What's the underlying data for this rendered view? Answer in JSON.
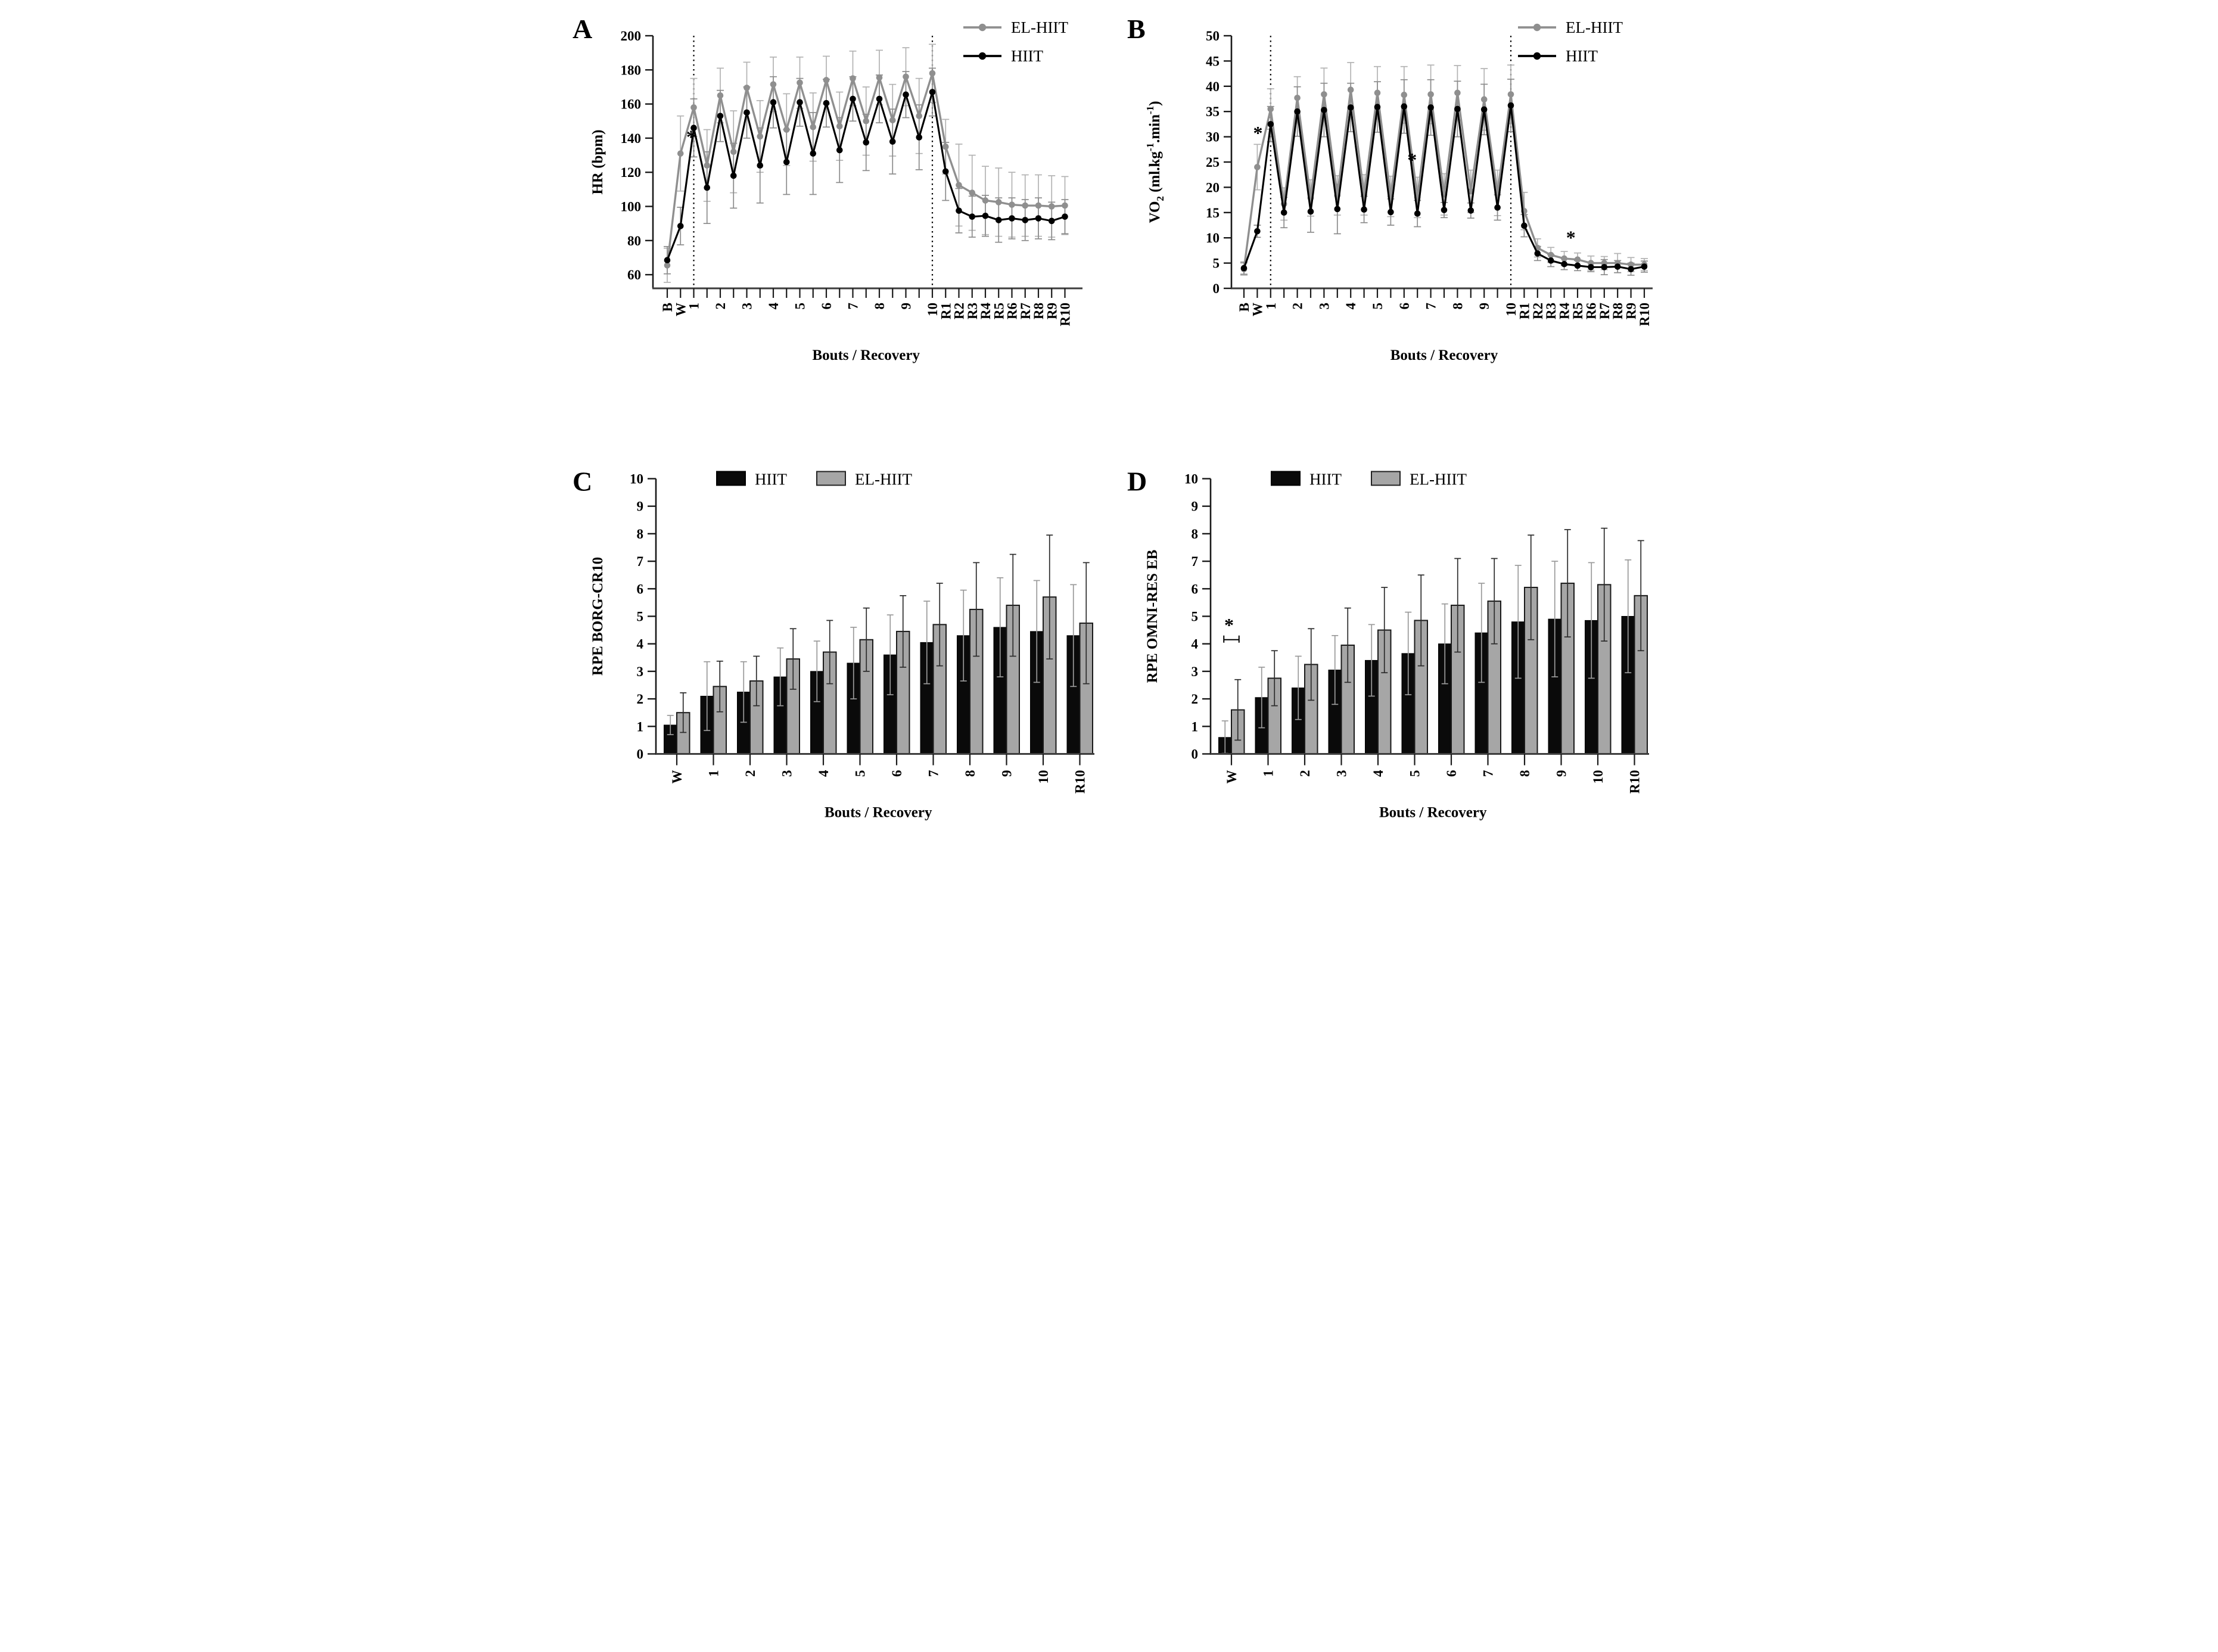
{
  "figure": {
    "xlabel": "Bouts / Recovery",
    "legend_line_panels": [
      "EL-HIIT",
      "HIIT"
    ],
    "legend_bar_panels": [
      "HIIT",
      "EL-HIIT"
    ],
    "colors": {
      "el_hiit_line": "#8f8f8f",
      "hiit_line": "#000000",
      "el_hiit_bar": "#a6a6a6",
      "hiit_bar": "#0a0a0a",
      "axis": "#3d3d3d"
    }
  },
  "chart_data": [
    {
      "letter": "A",
      "type": "line",
      "ylabel": "HR (bpm)",
      "xlabel": "Bouts / Recovery",
      "ylim": [
        52,
        200
      ],
      "yticks": [
        60,
        80,
        100,
        120,
        140,
        160,
        180,
        200
      ],
      "x_labels": [
        "B",
        "W",
        "1",
        "",
        "2",
        "",
        "3",
        "",
        "4",
        "",
        "5",
        "",
        "6",
        "",
        "7",
        "",
        "8",
        "",
        "9",
        "",
        "10",
        "R1",
        "R2",
        "R3",
        "R4",
        "R5",
        "R6",
        "R7",
        "R8",
        "R9",
        "R10"
      ],
      "dotted_x": [
        2,
        20
      ],
      "legend_pos": "top-right",
      "series": [
        {
          "name": "EL-HIIT",
          "color": "#8f8f8f",
          "err_color": "#b3b3b3",
          "values": [
            65.5,
            131,
            158,
            124,
            165,
            132,
            169.5,
            141,
            171.5,
            145,
            172.5,
            146.5,
            174,
            147,
            175,
            150,
            175.5,
            150.5,
            176,
            153,
            178,
            135,
            112.5,
            108,
            103.5,
            102.5,
            101,
            100.5,
            100.5,
            100,
            100.5
          ],
          "err": [
            10,
            22,
            17,
            21,
            16,
            24,
            15,
            21,
            16,
            21,
            15,
            20,
            14,
            20,
            16,
            20,
            16,
            21,
            17,
            22,
            17,
            16,
            24,
            22,
            20,
            20,
            19,
            18,
            18,
            18,
            17
          ]
        },
        {
          "name": "HIIT",
          "color": "#000000",
          "err_color": "#8c8c8c",
          "values": [
            68.5,
            88.5,
            146,
            111,
            153,
            118,
            155,
            124,
            161,
            126,
            161,
            131,
            160.5,
            133,
            163,
            137.5,
            163,
            138,
            165.5,
            140.5,
            167,
            120.5,
            97.5,
            94,
            94.5,
            92,
            93,
            92,
            93,
            91.5,
            94
          ],
          "err": [
            8,
            11,
            17,
            21,
            15,
            19,
            15,
            22,
            15,
            19,
            14,
            24,
            14,
            19,
            13,
            16.5,
            14,
            19,
            13.5,
            19,
            14,
            17,
            13,
            12,
            12,
            13,
            12,
            12,
            12,
            11,
            10
          ]
        }
      ],
      "annotations": [
        {
          "text": "*",
          "xi": 1.8,
          "y": 137
        }
      ]
    },
    {
      "letter": "B",
      "type": "line",
      "ylabel": "VO2 (ml.kg-1.min-1)",
      "ylabel_parts": [
        [
          "n",
          "VO"
        ],
        [
          "sub",
          "2"
        ],
        [
          "n",
          " (ml.kg"
        ],
        [
          "sup",
          "-1"
        ],
        [
          "n",
          ".min"
        ],
        [
          "sup",
          "-1"
        ],
        [
          "n",
          ")"
        ]
      ],
      "xlabel": "Bouts / Recovery",
      "ylim": [
        0,
        50
      ],
      "yticks": [
        0,
        5,
        10,
        15,
        20,
        25,
        30,
        35,
        40,
        45,
        50
      ],
      "x_labels": [
        "B",
        "W",
        "1",
        "",
        "2",
        "",
        "3",
        "",
        "4",
        "",
        "5",
        "",
        "6",
        "",
        "7",
        "",
        "8",
        "",
        "9",
        "",
        "10",
        "R1",
        "R2",
        "R3",
        "R4",
        "R5",
        "R6",
        "R7",
        "R8",
        "R9",
        "R10"
      ],
      "dotted_x": [
        2,
        20
      ],
      "legend_pos": "top-right",
      "series": [
        {
          "name": "EL-HIIT",
          "color": "#8f8f8f",
          "err_color": "#b3b3b3",
          "values": [
            3.8,
            24,
            35.5,
            16.7,
            37.7,
            17.9,
            38.4,
            18.4,
            39.3,
            18.5,
            38.7,
            18.2,
            38.3,
            18,
            38.4,
            18.6,
            38.7,
            19.2,
            37.4,
            18.9,
            38.4,
            15.3,
            8,
            6.6,
            5.9,
            5.7,
            5,
            5,
            5,
            4.7,
            4.7
          ],
          "err": [
            1.2,
            4.5,
            4,
            3.2,
            4.2,
            3.6,
            5.2,
            3.9,
            5.4,
            4,
            5.2,
            4,
            5.6,
            4,
            5.8,
            4.1,
            5.4,
            4.2,
            6.1,
            4.5,
            5.8,
            3.7,
            1.8,
            1.5,
            1.4,
            1.3,
            1.4,
            1.3,
            1.9,
            1.4,
            1.2
          ]
        },
        {
          "name": "HIIT",
          "color": "#000000",
          "err_color": "#8c8c8c",
          "values": [
            4,
            11.3,
            32.5,
            15,
            35,
            15.2,
            35.3,
            15.7,
            35.8,
            15.6,
            35.9,
            15.1,
            36,
            14.8,
            35.8,
            15.5,
            35.5,
            15.4,
            35.4,
            16,
            36.2,
            12.4,
            6.9,
            5.5,
            4.8,
            4.5,
            4.2,
            4.2,
            4.3,
            3.8,
            4.3
          ],
          "err": [
            1.2,
            1.2,
            3.5,
            3,
            4.9,
            4.1,
            5.3,
            4.9,
            4.8,
            2.6,
            5,
            2.6,
            5.3,
            2.6,
            5.5,
            1.5,
            5.5,
            1.5,
            5,
            2.5,
            5.2,
            2.2,
            1.4,
            1.2,
            1.1,
            1,
            0.9,
            1.5,
            1.2,
            1.2,
            1.1
          ]
        }
      ],
      "annotations": [
        {
          "text": "*",
          "xi": 1.05,
          "y": 29.5
        },
        {
          "text": "*",
          "xi": 12.6,
          "y": 24.2
        },
        {
          "text": "*",
          "xi": 24.5,
          "y": 8.8
        }
      ]
    },
    {
      "letter": "C",
      "type": "bar",
      "ylabel": "RPE BORG-CR10",
      "xlabel": "Bouts / Recovery",
      "ylim": [
        0,
        10
      ],
      "yticks": [
        0,
        1,
        2,
        3,
        4,
        5,
        6,
        7,
        8,
        9,
        10
      ],
      "categories": [
        "W",
        "1",
        "2",
        "3",
        "4",
        "5",
        "6",
        "7",
        "8",
        "9",
        "10",
        "R10"
      ],
      "legend_pos": "top-center",
      "series": [
        {
          "name": "HIIT",
          "color": "#0a0a0a",
          "err_color": "#9a9a9a",
          "values": [
            1.05,
            2.1,
            2.25,
            2.8,
            3.0,
            3.3,
            3.6,
            4.05,
            4.3,
            4.6,
            4.45,
            4.3
          ],
          "err": [
            0.35,
            1.25,
            1.1,
            1.05,
            1.1,
            1.3,
            1.45,
            1.5,
            1.65,
            1.8,
            1.85,
            1.85
          ]
        },
        {
          "name": "EL-HIIT",
          "color": "#a6a6a6",
          "err_color": "#2b2b2b",
          "values": [
            1.5,
            2.45,
            2.65,
            3.45,
            3.7,
            4.15,
            4.45,
            4.7,
            5.25,
            5.4,
            5.7,
            4.75
          ],
          "err": [
            0.72,
            0.92,
            0.9,
            1.1,
            1.15,
            1.15,
            1.3,
            1.5,
            1.7,
            1.85,
            2.25,
            2.2
          ]
        }
      ],
      "annotations": []
    },
    {
      "letter": "D",
      "type": "bar",
      "ylabel": "RPE OMNI-RES EB",
      "xlabel": "Bouts / Recovery",
      "ylim": [
        0,
        10
      ],
      "yticks": [
        0,
        1,
        2,
        3,
        4,
        5,
        6,
        7,
        8,
        9,
        10
      ],
      "categories": [
        "W",
        "1",
        "2",
        "3",
        "4",
        "5",
        "6",
        "7",
        "8",
        "9",
        "10",
        "R10"
      ],
      "legend_pos": "top-center",
      "series": [
        {
          "name": "HIIT",
          "color": "#0a0a0a",
          "err_color": "#9a9a9a",
          "values": [
            0.6,
            2.05,
            2.4,
            3.05,
            3.4,
            3.65,
            4.0,
            4.4,
            4.8,
            4.9,
            4.85,
            5.0
          ],
          "err": [
            0.6,
            1.1,
            1.15,
            1.25,
            1.3,
            1.5,
            1.45,
            1.8,
            2.05,
            2.1,
            2.1,
            2.05
          ]
        },
        {
          "name": "EL-HIIT",
          "color": "#a6a6a6",
          "err_color": "#2b2b2b",
          "values": [
            1.6,
            2.75,
            3.25,
            3.95,
            4.5,
            4.85,
            5.4,
            5.55,
            6.05,
            6.2,
            6.15,
            5.75
          ],
          "err": [
            1.1,
            1.0,
            1.3,
            1.35,
            1.55,
            1.65,
            1.7,
            1.55,
            1.9,
            1.95,
            2.05,
            2.0
          ]
        }
      ],
      "annotations": [
        {
          "type": "bracket",
          "cat": 0,
          "y": 4.15,
          "text": "*"
        }
      ]
    }
  ]
}
